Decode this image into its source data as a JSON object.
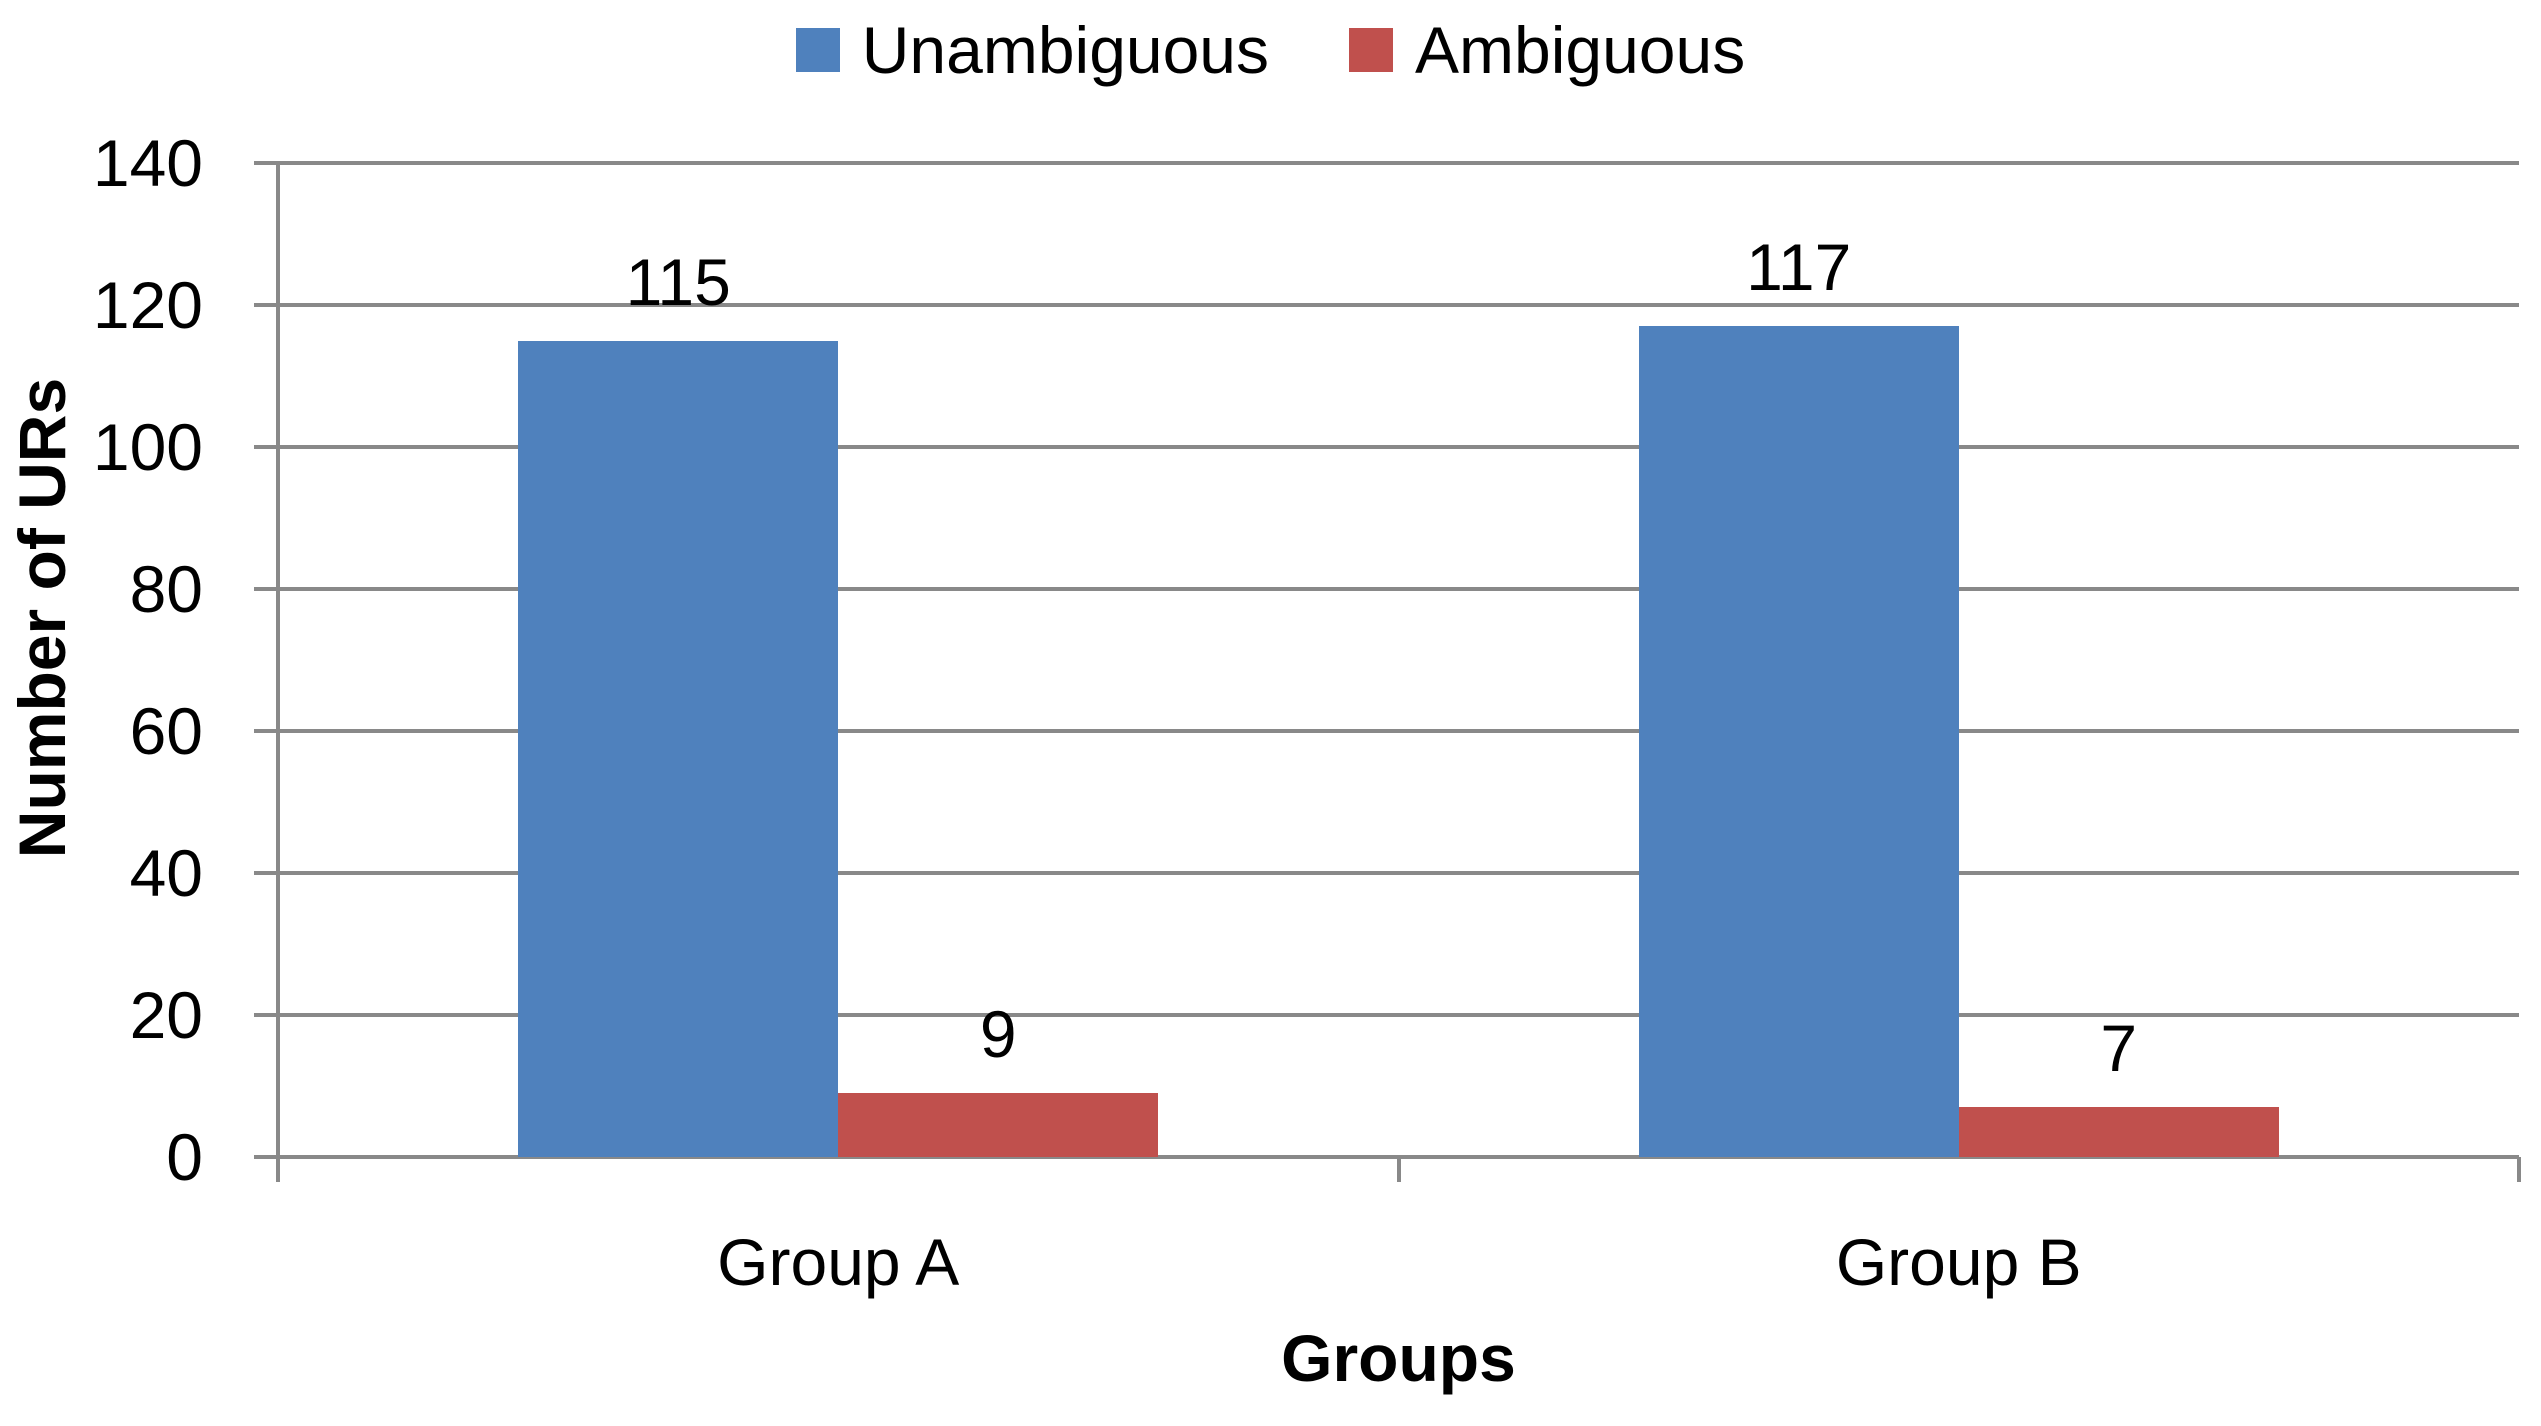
{
  "chart_data": {
    "type": "bar",
    "categories": [
      "Group A",
      "Group B"
    ],
    "series": [
      {
        "name": "Unambiguous",
        "color": "#4F81BD",
        "values": [
          115,
          117
        ]
      },
      {
        "name": "Ambiguous",
        "color": "#C0504D",
        "values": [
          9,
          7
        ]
      }
    ],
    "title": "",
    "xlabel": "Groups",
    "ylabel": "Number of URs",
    "ylim": [
      0,
      140
    ],
    "yticks": [
      0,
      20,
      40,
      60,
      80,
      100,
      120,
      140
    ],
    "grid": true,
    "legend_position": "top",
    "data_labels_visible": true,
    "colors": {
      "gridline": "#898989",
      "axis": "#898989",
      "text": "#000000",
      "background": "#FFFFFF"
    }
  }
}
